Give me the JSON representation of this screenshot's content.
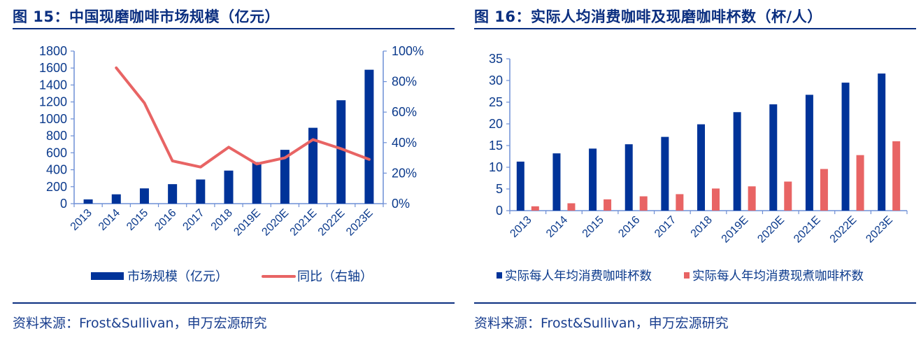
{
  "charts": [
    {
      "title": "图 15：中国现磨咖啡市场规模（亿元）",
      "source": "资料来源：Frost&Sullivan，申万宏源研究"
    },
    {
      "title": "图 16：实际人均消费咖啡及现磨咖啡杯数（杯/人）",
      "source": "资料来源：Frost&Sullivan，申万宏源研究"
    }
  ],
  "chart_data": [
    {
      "type": "bar+line",
      "title": "图 15：中国现磨咖啡市场规模（亿元）",
      "categories": [
        "2013",
        "2014",
        "2015",
        "2016",
        "2017",
        "2018",
        "2019E",
        "2020E",
        "2021E",
        "2022E",
        "2023E"
      ],
      "series": [
        {
          "name": "市场规模（亿元）",
          "type": "bar",
          "axis": "left",
          "color": "#003399",
          "values": [
            50,
            110,
            180,
            230,
            285,
            390,
            490,
            635,
            895,
            1220,
            1580
          ]
        },
        {
          "name": "同比（右轴）",
          "type": "line",
          "axis": "right",
          "color": "#e86464",
          "values": [
            null,
            0.89,
            0.66,
            0.28,
            0.24,
            0.37,
            0.26,
            0.3,
            0.42,
            0.36,
            0.29
          ]
        }
      ],
      "ylim": [
        0,
        1800
      ],
      "yticks": [
        "0",
        "200",
        "400",
        "600",
        "800",
        "1000",
        "1200",
        "1400",
        "1600",
        "1800"
      ],
      "y2lim": [
        0,
        1
      ],
      "y2ticks": [
        "0%",
        "20%",
        "40%",
        "60%",
        "80%",
        "100%"
      ],
      "grid": false,
      "legend": "bottom"
    },
    {
      "type": "bar",
      "title": "图 16：实际人均消费咖啡及现磨咖啡杯数（杯/人）",
      "categories": [
        "2013",
        "2014",
        "2015",
        "2016",
        "2017",
        "2018",
        "2019E",
        "2020E",
        "2021E",
        "2022E",
        "2023E"
      ],
      "series": [
        {
          "name": "实际每人年均消费咖啡杯数",
          "color": "#003399",
          "values": [
            11.3,
            13.2,
            14.3,
            15.3,
            17.0,
            19.9,
            22.7,
            24.5,
            26.7,
            29.5,
            31.6
          ]
        },
        {
          "name": "实际每人年均消费现煮咖啡杯数",
          "color": "#e86464",
          "values": [
            1.0,
            1.7,
            2.6,
            3.3,
            3.8,
            5.1,
            5.6,
            6.7,
            9.6,
            12.8,
            16.0
          ]
        }
      ],
      "ylim": [
        0,
        35
      ],
      "yticks": [
        "0",
        "5",
        "10",
        "15",
        "20",
        "25",
        "30",
        "35"
      ],
      "grid": false,
      "legend": "bottom"
    }
  ]
}
